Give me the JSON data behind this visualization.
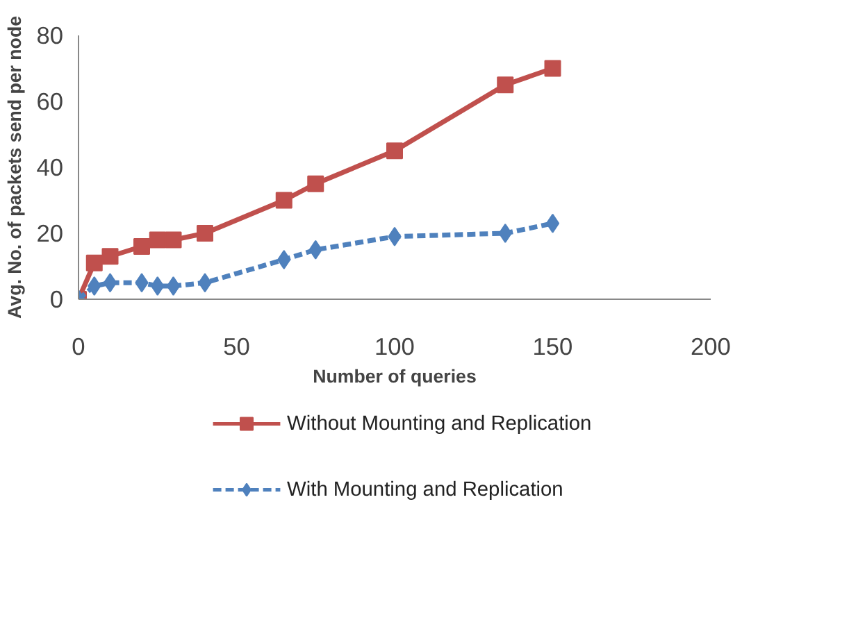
{
  "chart_data": {
    "type": "line",
    "xlabel": "Number of queries",
    "ylabel": "Avg. No. of packets send per node",
    "xlim": [
      0,
      200
    ],
    "xticks": [
      0,
      50,
      100,
      150,
      200
    ],
    "ylim": [
      0,
      80
    ],
    "yticks": [
      0,
      20,
      40,
      60,
      80
    ],
    "grid": false,
    "legend": "bottom",
    "series": [
      {
        "name": "Without Mounting and Replication",
        "color": "#c0504d",
        "marker": "square",
        "line_style": "solid",
        "x": [
          0,
          5,
          10,
          20,
          25,
          30,
          40,
          65,
          75,
          100,
          135,
          150
        ],
        "values": [
          0,
          11,
          13,
          16,
          18,
          18,
          20,
          30,
          35,
          45,
          65,
          70
        ]
      },
      {
        "name": "With Mounting and Replication",
        "color": "#4f81bd",
        "marker": "diamond",
        "line_style": "dashed",
        "x": [
          0,
          5,
          10,
          20,
          25,
          30,
          40,
          65,
          75,
          100,
          135,
          150
        ],
        "values": [
          0,
          4,
          5,
          5,
          4,
          4,
          5,
          12,
          15,
          19,
          20,
          23
        ]
      }
    ]
  }
}
